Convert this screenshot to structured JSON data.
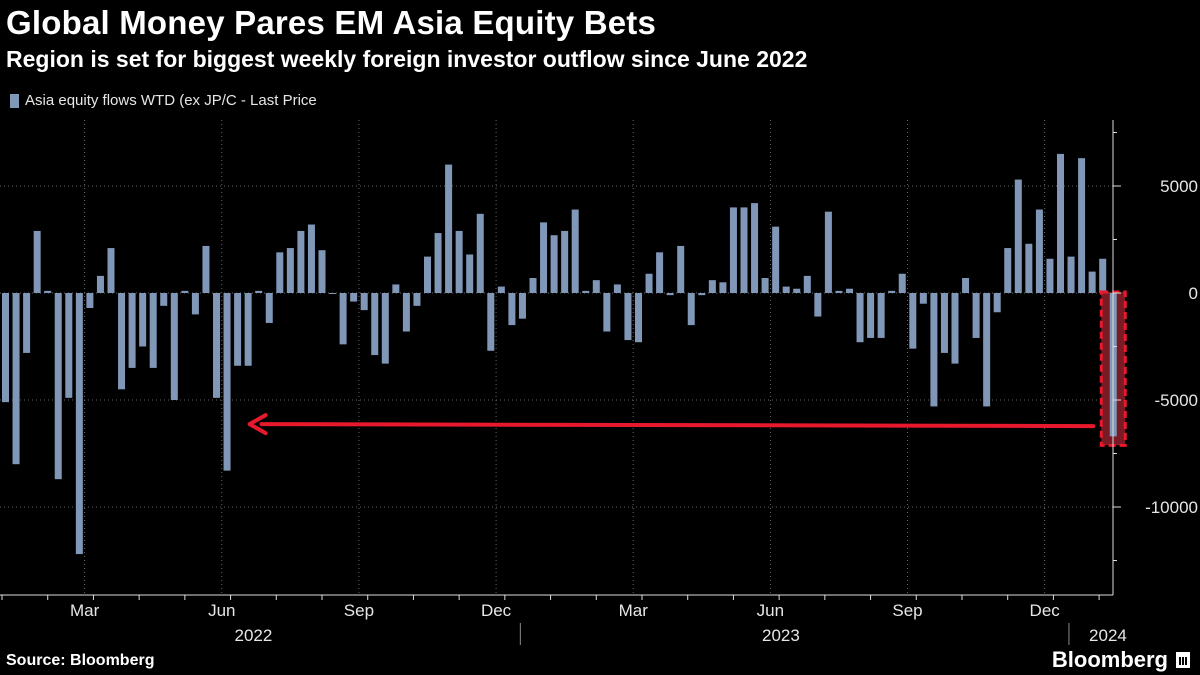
{
  "header": {
    "title": "Global Money Pares EM Asia Equity Bets",
    "subtitle": "Region is set for biggest weekly foreign investor outflow since June 2022"
  },
  "footer": {
    "source": "Source: Bloomberg",
    "brand": "Bloomberg"
  },
  "colors": {
    "bar": "#8197b8",
    "highlight_fill": "#7a1a24",
    "highlight_stroke": "#e8192c",
    "arrow": "#e8192c",
    "grid": "#666666"
  },
  "chart_data": {
    "type": "bar",
    "legend": "Asia equity flows WTD (ex JP/C - Last Price",
    "ylim": [
      -14000,
      8000
    ],
    "yticks": [
      5000,
      0,
      -5000,
      -10000
    ],
    "ytick_labels": [
      "5000",
      "0",
      "-5000",
      "-10000"
    ],
    "month_labels": [
      {
        "label": "Mar",
        "week": 8
      },
      {
        "label": "Jun",
        "week": 21
      },
      {
        "label": "Sep",
        "week": 34
      },
      {
        "label": "Dec",
        "week": 47
      },
      {
        "label": "Mar",
        "week": 60
      },
      {
        "label": "Jun",
        "week": 73
      },
      {
        "label": "Sep",
        "week": 86
      },
      {
        "label": "Dec",
        "week": 99
      }
    ],
    "year_labels": [
      {
        "label": "2022",
        "week": 24
      },
      {
        "label": "2023",
        "week": 74
      },
      {
        "label": "2024",
        "week": 105
      }
    ],
    "weeks": 106,
    "values": [
      -5100,
      -8000,
      -2800,
      2900,
      100,
      -8700,
      -4900,
      -12200,
      -700,
      800,
      2100,
      -4500,
      -3500,
      -2500,
      -3500,
      -600,
      -5000,
      100,
      -1000,
      2200,
      -4900,
      -8300,
      -3400,
      -3400,
      100,
      -1400,
      1900,
      2100,
      2900,
      3200,
      2000,
      0,
      -2400,
      -400,
      -800,
      -2900,
      -3300,
      400,
      -1800,
      -600,
      1700,
      2800,
      6000,
      2900,
      1800,
      3700,
      -2700,
      300,
      -1500,
      -1200,
      700,
      3300,
      2700,
      2900,
      3900,
      100,
      600,
      -1800,
      400,
      -2200,
      -2300,
      900,
      1900,
      -100,
      2200,
      -1500,
      -100,
      600,
      500,
      4000,
      4000,
      4200,
      700,
      3100,
      300,
      200,
      800,
      -1100,
      3800,
      100,
      200,
      -2300,
      -2100,
      -2100,
      100,
      900,
      -2600,
      -500,
      -5300,
      -2800,
      -3300,
      700,
      -2100,
      -5300,
      -900,
      2100,
      5300,
      2300,
      3900,
      1600,
      6500,
      1700,
      6300,
      1000,
      1600,
      -6700
    ]
  },
  "annotations": {
    "highlight_week": 105,
    "arrow_from_week": 105,
    "arrow_to_week": 22,
    "arrow_value": -6500
  }
}
